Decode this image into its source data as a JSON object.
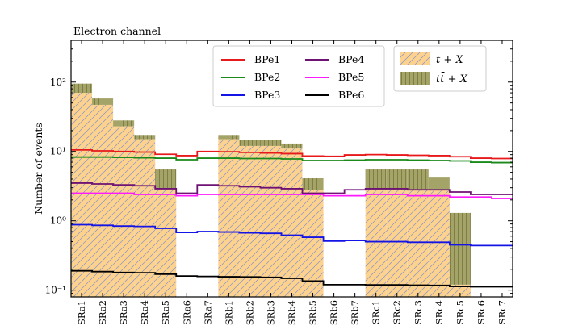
{
  "chart_data": {
    "type": "step-histogram",
    "title": "Electron channel",
    "xlabel": "",
    "ylabel": "Number of events",
    "yscale": "log",
    "ylim": [
      0.08,
      400
    ],
    "ytick_values": [
      0.1,
      1,
      10,
      100
    ],
    "ytick_labels": [
      "10⁻¹",
      "10⁰",
      "10¹",
      "10²"
    ],
    "categories": [
      "SRa1",
      "SRa2",
      "SRa3",
      "SRa4",
      "SRa5",
      "SRa6",
      "SRa7",
      "SRb1",
      "SRb2",
      "SRb3",
      "SRb4",
      "SRb5",
      "SRb6",
      "SRb7",
      "SRc1",
      "SRc2",
      "SRc3",
      "SRc4",
      "SRc5",
      "SRc6",
      "SRc7"
    ],
    "stacked_backgrounds": [
      {
        "name": "t + X",
        "fill": "#fcd28e",
        "hatch": "#7f8fd4",
        "values": [
          70,
          47,
          23,
          15,
          2.9,
          0,
          0,
          15,
          12,
          12,
          11,
          2.8,
          0,
          0,
          2.8,
          2.8,
          2.8,
          2.8,
          0.12,
          0,
          0
        ]
      },
      {
        "name": "t t̄ + X",
        "fill": "#a5a468",
        "hatch": "#6a6a2a",
        "values": [
          25,
          11,
          5,
          2.3,
          2.6,
          0,
          0,
          2.3,
          2.5,
          2.5,
          2.0,
          1.3,
          0,
          0,
          2.7,
          2.7,
          2.7,
          1.4,
          1.18,
          0,
          0
        ]
      }
    ],
    "series": [
      {
        "name": "BPe1",
        "color": "#e8191b",
        "values": [
          10.5,
          10.2,
          10.0,
          9.8,
          9.1,
          8.7,
          10.0,
          9.9,
          9.7,
          9.5,
          9.3,
          8.6,
          8.5,
          8.9,
          9.0,
          8.9,
          8.8,
          8.7,
          8.4,
          8.0,
          7.9
        ]
      },
      {
        "name": "BPe2",
        "color": "#1a8a1a",
        "values": [
          8.3,
          8.3,
          8.2,
          8.1,
          8.0,
          7.6,
          8.0,
          8.0,
          7.9,
          7.9,
          7.8,
          7.4,
          7.4,
          7.5,
          7.6,
          7.6,
          7.5,
          7.4,
          7.3,
          7.0,
          6.9
        ]
      },
      {
        "name": "BPe3",
        "color": "#1414e6",
        "values": [
          0.88,
          0.86,
          0.84,
          0.83,
          0.78,
          0.68,
          0.7,
          0.69,
          0.67,
          0.66,
          0.62,
          0.58,
          0.51,
          0.52,
          0.5,
          0.5,
          0.49,
          0.49,
          0.45,
          0.44,
          0.44
        ]
      },
      {
        "name": "BPe4",
        "color": "#6e1273",
        "values": [
          3.5,
          3.4,
          3.3,
          3.2,
          2.9,
          2.5,
          3.3,
          3.2,
          3.1,
          3.0,
          2.9,
          2.5,
          2.5,
          2.8,
          2.9,
          2.9,
          2.8,
          2.8,
          2.6,
          2.4,
          2.4
        ]
      },
      {
        "name": "BPe5",
        "color": "#ff1aff",
        "values": [
          2.5,
          2.5,
          2.5,
          2.4,
          2.4,
          2.3,
          2.4,
          2.4,
          2.4,
          2.4,
          2.4,
          2.4,
          2.3,
          2.3,
          2.4,
          2.4,
          2.3,
          2.3,
          2.2,
          2.2,
          2.1
        ]
      },
      {
        "name": "BPe6",
        "color": "#000000",
        "values": [
          0.19,
          0.185,
          0.18,
          0.178,
          0.17,
          0.16,
          0.158,
          0.156,
          0.155,
          0.153,
          0.148,
          0.135,
          0.12,
          0.12,
          0.119,
          0.119,
          0.118,
          0.117,
          0.113,
          0.112,
          0.112
        ]
      }
    ],
    "legend_lines_position": "top-center",
    "legend_backgrounds_position": "top-right",
    "legend_backgrounds_labels": [
      "t + X",
      "tt̄ + X"
    ]
  }
}
